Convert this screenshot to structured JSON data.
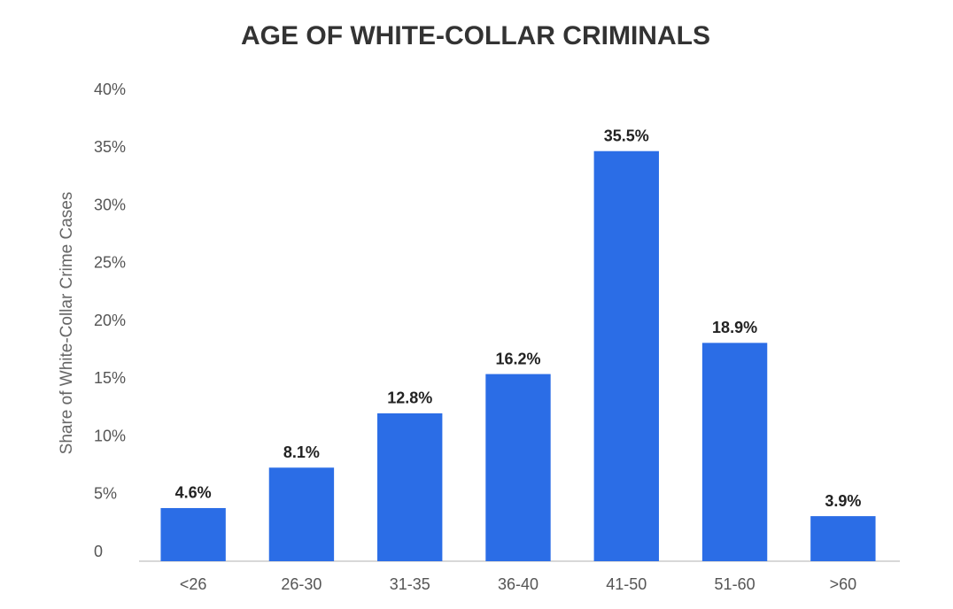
{
  "chart_data": {
    "type": "bar",
    "title": "AGE OF WHITE-COLLAR CRIMINALS",
    "y_label": "Share of White-Collar Crime Cases",
    "categories": [
      "<26",
      "26-30",
      "31-35",
      "36-40",
      "41-50",
      "51-60",
      ">60"
    ],
    "values": [
      4.6,
      8.1,
      12.8,
      16.2,
      35.5,
      18.9,
      3.9
    ],
    "value_labels": [
      "4.6%",
      "8.1%",
      "12.8%",
      "16.2%",
      "35.5%",
      "18.9%",
      "3.9%"
    ],
    "color": "#2b6de6",
    "ylim": [
      0,
      40
    ],
    "yticks": [
      0,
      {
        "value": 5,
        "label": "5%"
      },
      {
        "value": 10,
        "label": "10%"
      },
      {
        "value": 15,
        "label": "15%"
      },
      {
        "value": 20,
        "label": "20%"
      },
      {
        "value": 25,
        "label": "25%"
      },
      {
        "value": 30,
        "label": "30%"
      },
      {
        "value": 35,
        "label": "35%"
      },
      {
        "value": 40,
        "label": "40%"
      }
    ],
    "grid": false
  }
}
